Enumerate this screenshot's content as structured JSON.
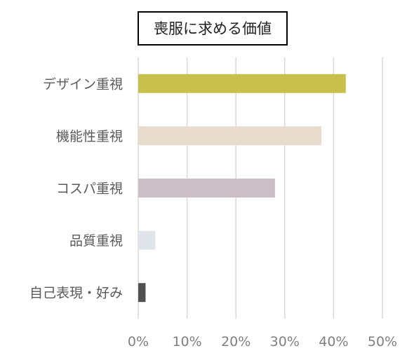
{
  "chart_data": {
    "type": "bar",
    "orientation": "horizontal",
    "title": "喪服に求める価値",
    "categories": [
      "デザイン重視",
      "機能性重視",
      "コスパ重視",
      "品質重視",
      "自己表現・好み"
    ],
    "values": [
      42.5,
      37.5,
      28,
      3.5,
      1.5
    ],
    "colors": [
      "#c9bf4b",
      "#e8dccc",
      "#cbbec4",
      "#dfe5ea",
      "#505050"
    ],
    "xlim": [
      0,
      50
    ],
    "xticks": [
      0,
      10,
      20,
      30,
      40,
      50
    ],
    "tick_labels": [
      "0%",
      "10%",
      "20%",
      "30%",
      "40%",
      "50%"
    ],
    "grid": true,
    "legend": "none"
  }
}
